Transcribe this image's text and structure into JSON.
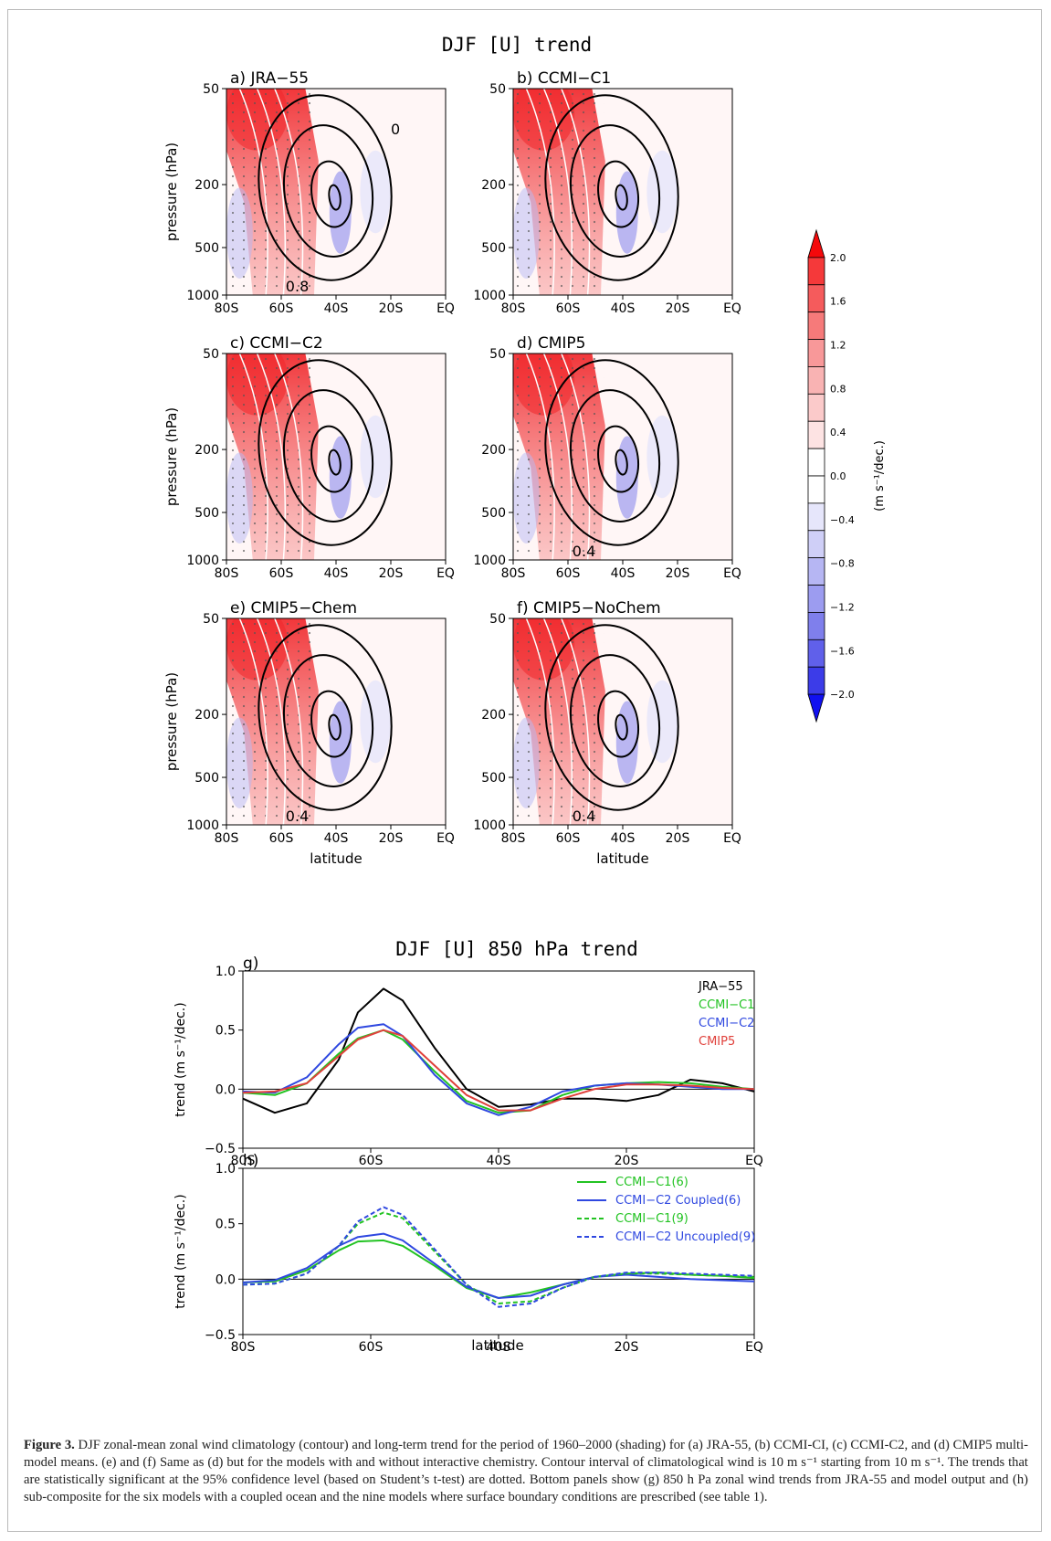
{
  "figure": {
    "title_top": "DJF [U] trend",
    "y_label": "pressure (hPa)",
    "x_label": "latitude",
    "y_ticks": [
      "50",
      "200",
      "500",
      "1000"
    ],
    "x_ticks": [
      "80S",
      "60S",
      "40S",
      "20S",
      "EQ"
    ],
    "panels": [
      {
        "label": "a) JRA−55",
        "contour_labels": [
          "0",
          "0.8"
        ]
      },
      {
        "label": "b) CCMI−C1",
        "contour_labels": []
      },
      {
        "label": "c) CCMI−C2",
        "contour_labels": []
      },
      {
        "label": "d) CMIP5",
        "contour_labels": [
          "0.4"
        ]
      },
      {
        "label": "e) CMIP5−Chem",
        "contour_labels": [
          "0.4"
        ]
      },
      {
        "label": "f) CMIP5−NoChem",
        "contour_labels": [
          "0.4"
        ]
      }
    ],
    "colorbar": {
      "label": "(m s⁻¹/dec.)",
      "ticks": [
        "2.0",
        "1.6",
        "1.2",
        "0.8",
        "0.4",
        "0.0",
        "−0.4",
        "−0.8",
        "−1.2",
        "−1.6",
        "−2.0"
      ],
      "colors": [
        "#f4090b",
        "#f5393a",
        "#f55b5c",
        "#f67a7a",
        "#f89899",
        "#f9b3b3",
        "#fbcaca",
        "#fde3e3",
        "#ffffff",
        "#ffffff",
        "#e6e6fb",
        "#cfcff7",
        "#b6b6f3",
        "#9c9cf0",
        "#7f7fec",
        "#6060ea",
        "#3c3ce8",
        "#1010f0"
      ]
    }
  },
  "chart_data": [
    {
      "type": "line",
      "panel": "g)",
      "title": "DJF [U] 850 hPa trend",
      "xlabel": "",
      "ylabel": "trend (m s⁻¹/dec.)",
      "xlim": [
        -80,
        0
      ],
      "ylim": [
        -0.5,
        1.0
      ],
      "x_ticks": [
        "80S",
        "60S",
        "40S",
        "20S",
        "EQ"
      ],
      "y_ticks": [
        "1.0",
        "0.5",
        "0.0",
        "−0.5"
      ],
      "legend_position": "top-right",
      "x": [
        -80,
        -75,
        -70,
        -65,
        -62,
        -58,
        -55,
        -50,
        -45,
        -40,
        -35,
        -30,
        -25,
        -20,
        -15,
        -10,
        -5,
        0
      ],
      "series": [
        {
          "name": "JRA−55",
          "color": "#000000",
          "dash": "",
          "values": [
            -0.08,
            -0.2,
            -0.12,
            0.25,
            0.65,
            0.85,
            0.75,
            0.35,
            0.0,
            -0.15,
            -0.13,
            -0.08,
            -0.08,
            -0.1,
            -0.05,
            0.08,
            0.05,
            -0.02
          ]
        },
        {
          "name": "CCMI−C1",
          "color": "#22c322",
          "dash": "",
          "values": [
            -0.03,
            -0.05,
            0.05,
            0.3,
            0.43,
            0.5,
            0.42,
            0.15,
            -0.1,
            -0.2,
            -0.18,
            -0.05,
            0.03,
            0.05,
            0.06,
            0.05,
            0.02,
            0.0
          ]
        },
        {
          "name": "CCMI−C2",
          "color": "#2f48e0",
          "dash": "",
          "values": [
            -0.02,
            -0.03,
            0.1,
            0.38,
            0.52,
            0.55,
            0.45,
            0.12,
            -0.12,
            -0.22,
            -0.15,
            -0.02,
            0.03,
            0.05,
            0.04,
            0.02,
            0.0,
            0.0
          ]
        },
        {
          "name": "CMIP5",
          "color": "#e0403b",
          "dash": "",
          "values": [
            -0.03,
            -0.02,
            0.05,
            0.28,
            0.42,
            0.5,
            0.45,
            0.2,
            -0.05,
            -0.18,
            -0.18,
            -0.08,
            0.0,
            0.04,
            0.04,
            0.03,
            0.01,
            0.0
          ]
        }
      ]
    },
    {
      "type": "line",
      "panel": "h)",
      "title": "",
      "xlabel": "latitude",
      "ylabel": "trend (m s⁻¹/dec.)",
      "xlim": [
        -80,
        0
      ],
      "ylim": [
        -0.5,
        1.0
      ],
      "x_ticks": [
        "80S",
        "60S",
        "40S",
        "20S",
        "EQ"
      ],
      "y_ticks": [
        "1.0",
        "0.5",
        "0.0",
        "−0.5"
      ],
      "legend_position": "top-right",
      "x": [
        -80,
        -75,
        -70,
        -65,
        -62,
        -58,
        -55,
        -50,
        -45,
        -40,
        -35,
        -30,
        -25,
        -20,
        -15,
        -10,
        -5,
        0
      ],
      "series": [
        {
          "name": "CCMI−C1(6)",
          "color": "#22c322",
          "dash": "",
          "values": [
            -0.03,
            -0.02,
            0.08,
            0.26,
            0.34,
            0.35,
            0.3,
            0.12,
            -0.08,
            -0.17,
            -0.12,
            -0.05,
            0.02,
            0.05,
            0.06,
            0.04,
            0.03,
            0.01
          ]
        },
        {
          "name": "CCMI−C2 Coupled(6)",
          "color": "#2f48e0",
          "dash": "",
          "values": [
            -0.03,
            -0.01,
            0.1,
            0.3,
            0.38,
            0.41,
            0.35,
            0.14,
            -0.07,
            -0.17,
            -0.15,
            -0.05,
            0.02,
            0.04,
            0.02,
            0.0,
            -0.01,
            -0.02
          ]
        },
        {
          "name": "CCMI−C1(9)",
          "color": "#22c322",
          "dash": "5,3",
          "values": [
            -0.05,
            -0.04,
            0.05,
            0.3,
            0.5,
            0.6,
            0.55,
            0.25,
            -0.05,
            -0.22,
            -0.2,
            -0.08,
            0.02,
            0.05,
            0.05,
            0.04,
            0.03,
            0.02
          ]
        },
        {
          "name": "CCMI−C2 Uncoupled(9)",
          "color": "#2f48e0",
          "dash": "5,3",
          "values": [
            -0.05,
            -0.04,
            0.05,
            0.3,
            0.52,
            0.65,
            0.58,
            0.27,
            -0.05,
            -0.25,
            -0.22,
            -0.08,
            0.02,
            0.06,
            0.06,
            0.05,
            0.04,
            0.03
          ]
        }
      ]
    }
  ],
  "caption": {
    "lead": "Figure 3.",
    "text": " DJF zonal-mean zonal wind climatology (contour) and long-term trend for the period of 1960–2000 (shading) for (a) JRA-55, (b) CCMI-CI, (c) CCMI-C2, and (d) CMIP5 multi-model means. (e) and (f) Same as (d) but for the models with and without interactive chemistry. Contour interval of climatological wind is 10 m s⁻¹ starting from 10 m s⁻¹. The trends that are statistically significant at the 95% confidence level (based on Student’s t-test) are dotted. Bottom panels show (g) 850 h Pa zonal wind trends from JRA-55 and model output and (h) sub-composite for the six models with a coupled ocean and the nine models where surface boundary conditions are prescribed (see table 1)."
  }
}
